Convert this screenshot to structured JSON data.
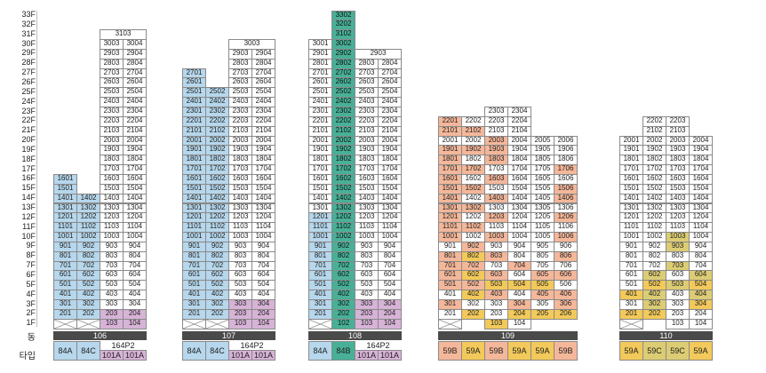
{
  "row_labels": {
    "dong": "동",
    "type": "타입"
  },
  "floors": [
    "33F",
    "32F",
    "31F",
    "30F",
    "29F",
    "28F",
    "27F",
    "26F",
    "25F",
    "24F",
    "23F",
    "22F",
    "21F",
    "20F",
    "19F",
    "18F",
    "17F",
    "16F",
    "15F",
    "14F",
    "13F",
    "12F",
    "11F",
    "10F",
    "9F",
    "8F",
    "7F",
    "6F",
    "5F",
    "4F",
    "3F",
    "2F",
    "1F"
  ],
  "type_colors": {
    "blue": "#b6d7ec",
    "green": "#48b097",
    "purple": "#d7b3d7",
    "salmon": "#f4b79a",
    "yellow": "#f2c95a",
    "olive": "#dccc74",
    "none": "#ffffff"
  },
  "buildings": [
    {
      "id": "106",
      "label": "106",
      "columns": [
        {
          "line": "01",
          "top": 16,
          "bottom": 2,
          "color": "blue",
          "pilotis": true
        },
        {
          "line": "02",
          "top": 14,
          "bottom": 2,
          "color": "blue",
          "pilotis": true
        },
        {
          "line": "03",
          "top": 30,
          "bottom": 1,
          "color": "none",
          "special": {
            "purple": [
              1,
              2
            ]
          }
        },
        {
          "line": "04",
          "top": 30,
          "bottom": 1,
          "color": "none",
          "special": {
            "purple": [
              1,
              2
            ]
          }
        }
      ],
      "wide_units": [
        {
          "text": "3103",
          "floor": 31,
          "from": 2,
          "span": 2
        }
      ],
      "types": [
        {
          "text": "84A",
          "from": 0,
          "span": 1,
          "color": "blue"
        },
        {
          "text": "84C",
          "from": 1,
          "span": 1,
          "color": "blue"
        },
        {
          "text": "101A",
          "from": 2,
          "span": 1,
          "color": "purple"
        },
        {
          "text": "101A",
          "from": 3,
          "span": 1,
          "color": "purple"
        }
      ],
      "type_top": [
        {
          "text": "164P2",
          "from": 2,
          "span": 2
        }
      ]
    },
    {
      "id": "107",
      "label": "107",
      "columns": [
        {
          "line": "01",
          "top": 27,
          "bottom": 2,
          "color": "blue",
          "pilotis": true
        },
        {
          "line": "02",
          "top": 25,
          "bottom": 2,
          "color": "blue",
          "pilotis": true
        },
        {
          "line": "03",
          "top": 29,
          "bottom": 1,
          "color": "none",
          "special": {
            "purple": [
              1,
              2,
              3
            ]
          }
        },
        {
          "line": "04",
          "top": 29,
          "bottom": 1,
          "color": "none",
          "special": {
            "purple": [
              1,
              2,
              3
            ]
          }
        }
      ],
      "wide_units": [
        {
          "text": "3003",
          "floor": 30,
          "from": 2,
          "span": 2
        }
      ],
      "types": [
        {
          "text": "84A",
          "from": 0,
          "span": 1,
          "color": "blue"
        },
        {
          "text": "84C",
          "from": 1,
          "span": 1,
          "color": "blue"
        },
        {
          "text": "101A",
          "from": 2,
          "span": 1,
          "color": "purple"
        },
        {
          "text": "101A",
          "from": 3,
          "span": 1,
          "color": "purple"
        }
      ],
      "type_top": [
        {
          "text": "164P2",
          "from": 2,
          "span": 2
        }
      ]
    },
    {
      "id": "108",
      "label": "108",
      "columns": [
        {
          "line": "01",
          "top": 30,
          "bottom": 2,
          "color": "none",
          "special": {
            "blue": [
              2,
              3,
              4,
              5,
              6,
              7,
              8,
              9,
              10,
              11,
              12
            ]
          },
          "pilotis": true
        },
        {
          "line": "02",
          "top": 33,
          "bottom": 1,
          "color": "green"
        },
        {
          "line": "03",
          "top": 28,
          "bottom": 1,
          "color": "none",
          "special": {
            "purple": [
              1,
              2,
              3
            ]
          }
        },
        {
          "line": "04",
          "top": 28,
          "bottom": 1,
          "color": "none",
          "special": {
            "purple": [
              1,
              2,
              3
            ]
          }
        }
      ],
      "wide_units": [
        {
          "text": "2903",
          "floor": 29,
          "from": 2,
          "span": 2
        }
      ],
      "types": [
        {
          "text": "84A",
          "from": 0,
          "span": 1,
          "color": "blue"
        },
        {
          "text": "84B",
          "from": 1,
          "span": 1,
          "color": "green"
        },
        {
          "text": "101A",
          "from": 2,
          "span": 1,
          "color": "purple"
        },
        {
          "text": "101A",
          "from": 3,
          "span": 1,
          "color": "purple"
        }
      ],
      "type_top": [
        {
          "text": "164P2",
          "from": 2,
          "span": 2
        }
      ]
    },
    {
      "id": "109",
      "label": "109",
      "columns": [
        {
          "line": "01",
          "top": 22,
          "bottom": 2,
          "color": "none",
          "special": {
            "salmon": [
              3,
              5,
              6,
              7,
              8,
              10,
              11,
              12,
              13,
              14,
              15,
              16,
              17,
              18,
              19,
              21,
              22
            ]
          },
          "pilotis": true
        },
        {
          "line": "02",
          "top": 22,
          "bottom": 2,
          "color": "none",
          "special": {
            "yellow": [
              2,
              4,
              6,
              8
            ],
            "salmon": [
              5,
              7,
              9,
              11,
              13,
              15,
              17,
              19,
              21
            ]
          }
        },
        {
          "line": "03",
          "top": 23,
          "bottom": 1,
          "color": "none",
          "special": {
            "salmon": [
              4,
              6,
              8,
              10,
              12,
              14,
              16,
              18,
              19,
              20
            ],
            "yellow": [
              1,
              5
            ]
          }
        },
        {
          "line": "04",
          "top": 23,
          "bottom": 1,
          "color": "none",
          "special": {
            "yellow": [
              2,
              5
            ],
            "salmon": [
              3,
              7
            ]
          }
        },
        {
          "line": "05",
          "top": 20,
          "bottom": 2,
          "color": "none",
          "special": {
            "yellow": [
              2,
              5
            ],
            "salmon": [
              4,
              6
            ]
          }
        },
        {
          "line": "06",
          "top": 20,
          "bottom": 2,
          "color": "none",
          "special": {
            "yellow": [
              2
            ],
            "salmon": [
              3,
              4,
              6,
              8,
              10,
              12,
              14,
              15,
              17
            ]
          }
        }
      ],
      "wide_units": [],
      "types": [
        {
          "text": "59B",
          "from": 0,
          "span": 1,
          "color": "salmon"
        },
        {
          "text": "59A",
          "from": 1,
          "span": 1,
          "color": "yellow"
        },
        {
          "text": "59B",
          "from": 2,
          "span": 1,
          "color": "salmon"
        },
        {
          "text": "59A",
          "from": 3,
          "span": 1,
          "color": "yellow"
        },
        {
          "text": "59A",
          "from": 4,
          "span": 1,
          "color": "yellow"
        },
        {
          "text": "59B",
          "from": 5,
          "span": 1,
          "color": "salmon"
        }
      ],
      "type_top": []
    },
    {
      "id": "110",
      "label": "110",
      "columns": [
        {
          "line": "01",
          "top": 20,
          "bottom": 2,
          "color": "none",
          "special": {
            "yellow": [
              2,
              4
            ]
          },
          "pilotis": true
        },
        {
          "line": "02",
          "top": 22,
          "bottom": 2,
          "color": "none",
          "special": {
            "yellow": [
              2,
              5
            ],
            "olive": [
              3,
              4,
              6
            ]
          }
        },
        {
          "line": "03",
          "top": 22,
          "bottom": 1,
          "color": "none",
          "special": {
            "olive": [
              5,
              7,
              9,
              10
            ]
          }
        },
        {
          "line": "04",
          "top": 20,
          "bottom": 1,
          "color": "none",
          "special": {
            "yellow": [
              3,
              5
            ],
            "olive": [
              4,
              6
            ]
          }
        }
      ],
      "wide_units": [],
      "types": [
        {
          "text": "59A",
          "from": 0,
          "span": 1,
          "color": "yellow"
        },
        {
          "text": "59C",
          "from": 1,
          "span": 1,
          "color": "olive"
        },
        {
          "text": "59C",
          "from": 2,
          "span": 1,
          "color": "olive"
        },
        {
          "text": "59A",
          "from": 3,
          "span": 1,
          "color": "yellow"
        }
      ],
      "type_top": []
    }
  ]
}
